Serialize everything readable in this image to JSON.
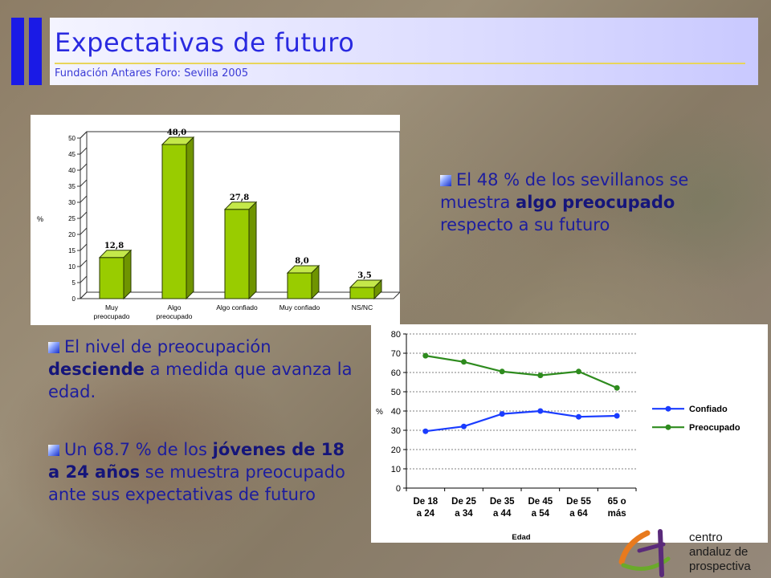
{
  "header": {
    "title": "Expectativas de futuro",
    "subtitle": "Fundación Antares Foro: Sevilla 2005"
  },
  "bullets": [
    {
      "segments": [
        {
          "text": "El 48 % de los sevillanos se muestra ",
          "bold": false
        },
        {
          "text": "algo preocupado",
          "bold": true
        },
        {
          "text": " respecto a su futuro",
          "bold": false
        }
      ]
    },
    {
      "segments": [
        {
          "text": "El nivel de preocupación ",
          "bold": false
        },
        {
          "text": "desciende",
          "bold": true
        },
        {
          "text": " a medida que avanza la edad.",
          "bold": false
        }
      ]
    },
    {
      "segments": [
        {
          "text": "Un 68.7 % de los ",
          "bold": false
        },
        {
          "text": "jóvenes de 18 a 24 años",
          "bold": true
        },
        {
          "text": " se muestra preocupado ante sus expectativas de futuro",
          "bold": false
        }
      ]
    }
  ],
  "colors": {
    "title": "#2a2ae0",
    "bar": "#99cc00",
    "confiado": "#1a3cff",
    "preocupado": "#2e8b1e",
    "logo_orange": "#e87a1e",
    "logo_purple": "#5a2a7a",
    "logo_green": "#6aaa2a"
  },
  "logo": {
    "lines": [
      "centro",
      "andaluz de",
      "prospectiva"
    ]
  },
  "chart_data": [
    {
      "type": "bar",
      "categories": [
        "Muy preocupado",
        "Algo preocupado",
        "Algo confiado",
        "Muy confiado",
        "NS/NC"
      ],
      "category_lines": [
        [
          "Muy",
          "preocupado"
        ],
        [
          "Algo",
          "preocupado"
        ],
        [
          "Algo confiado"
        ],
        [
          "Muy confiado"
        ],
        [
          "NS/NC"
        ]
      ],
      "values": [
        12.8,
        48.0,
        27.8,
        8.0,
        3.5
      ],
      "value_labels": [
        "12,8",
        "48,0",
        "27,8",
        "8,0",
        "3,5"
      ],
      "ylabel": "%",
      "ylim": [
        0,
        50
      ],
      "yticks": [
        0,
        5,
        10,
        15,
        20,
        25,
        30,
        35,
        40,
        45,
        50
      ],
      "grid": false
    },
    {
      "type": "line",
      "categories": [
        "De 18 a 24",
        "De 25 a 34",
        "De 35 a 44",
        "De 45 a 54",
        "De 55 a 64",
        "65 o más"
      ],
      "category_lines": [
        [
          "De 18",
          "a 24"
        ],
        [
          "De 25",
          "a 34"
        ],
        [
          "De 35",
          "a 44"
        ],
        [
          "De 45",
          "a 54"
        ],
        [
          "De 55",
          "a 64"
        ],
        [
          "65 o",
          "más"
        ]
      ],
      "series": [
        {
          "name": "Confiado",
          "values": [
            29.5,
            32,
            38.5,
            40,
            37,
            37.5
          ]
        },
        {
          "name": "Preocupado",
          "values": [
            68.7,
            65.5,
            60.5,
            58.5,
            60.5,
            52
          ]
        }
      ],
      "xlabel": "Edad",
      "ylabel": "%",
      "ylim": [
        0,
        80
      ],
      "yticks": [
        0,
        10,
        20,
        30,
        40,
        50,
        60,
        70,
        80
      ],
      "grid": true,
      "legend": "right"
    }
  ]
}
